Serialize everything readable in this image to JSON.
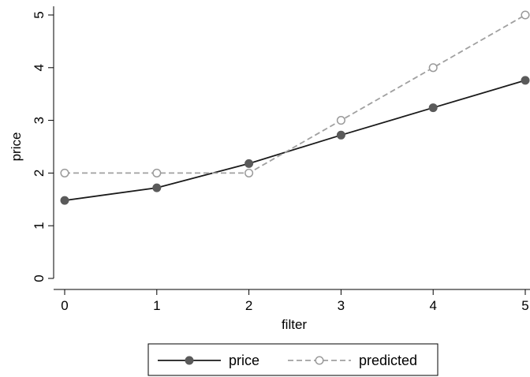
{
  "chart_data": {
    "type": "line",
    "xlabel": "filter",
    "ylabel": "price",
    "xlim": [
      0,
      5
    ],
    "ylim": [
      0,
      5
    ],
    "x_ticks": [
      "0",
      "1",
      "2",
      "3",
      "4",
      "5"
    ],
    "y_ticks": [
      "0",
      "1",
      "2",
      "3",
      "4",
      "5"
    ],
    "grid": false,
    "legend_position": "bottom",
    "x": [
      0,
      1,
      2,
      3,
      4,
      5
    ],
    "series": [
      {
        "name": "price",
        "values": [
          1.48,
          1.72,
          2.18,
          2.72,
          3.24,
          3.76
        ],
        "color": "#1a1a1a",
        "marker_color": "#5a5a5a",
        "line_style": "solid",
        "marker": "filled-circle"
      },
      {
        "name": "predicted",
        "values": [
          2.0,
          2.0,
          2.0,
          3.0,
          4.0,
          5.0
        ],
        "color": "#a0a0a0",
        "marker_color": "#9a9a9a",
        "line_style": "dashed",
        "marker": "hollow-circle"
      }
    ]
  }
}
